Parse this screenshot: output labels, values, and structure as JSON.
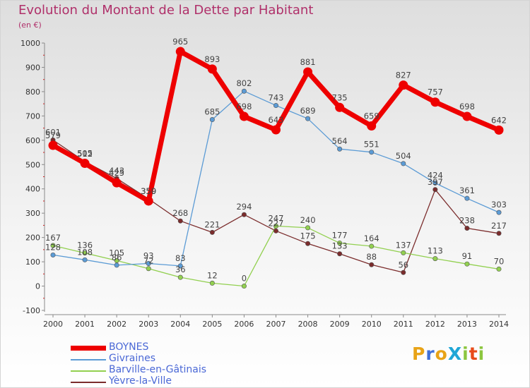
{
  "title": "Evolution du Montant de la Dette par Habitant",
  "subtitle": "(en €)",
  "logo": {
    "text": "ProXiti",
    "letters": [
      {
        "char": "P",
        "color": "#e8a317"
      },
      {
        "char": "r",
        "color": "#3f6fd8"
      },
      {
        "char": "o",
        "color": "#e8a317"
      },
      {
        "char": "X",
        "color": "#1fa6d6"
      },
      {
        "char": "i",
        "color": "#8cc63f"
      },
      {
        "char": "t",
        "color": "#e84b1a"
      },
      {
        "char": "i",
        "color": "#8cc63f"
      }
    ]
  },
  "chart_data": {
    "type": "line",
    "title": "Evolution du Montant de la Dette par Habitant",
    "ylabel": "(en €)",
    "xlabel": "",
    "x": [
      2000,
      2001,
      2002,
      2003,
      2004,
      2005,
      2006,
      2007,
      2008,
      2009,
      2010,
      2011,
      2012,
      2013,
      2014
    ],
    "ylim": [
      -100,
      1000
    ],
    "yticks": [
      -100,
      0,
      100,
      200,
      300,
      400,
      500,
      600,
      700,
      800,
      900,
      1000
    ],
    "grid": false,
    "legend": "bottom-left",
    "series": [
      {
        "name": "BOYNES",
        "color": "#ee0000",
        "values": [
          579,
          505,
          425,
          350,
          965,
          893,
          698,
          643,
          881,
          735,
          659,
          827,
          757,
          698,
          642
        ]
      },
      {
        "name": "Givraines",
        "color": "#5b9bd5",
        "values": [
          128,
          108,
          86,
          93,
          83,
          685,
          802,
          743,
          689,
          564,
          551,
          504,
          424,
          361,
          303
        ]
      },
      {
        "name": "Barville-en-Gâtinais",
        "color": "#92d050",
        "values": [
          167,
          136,
          105,
          72,
          36,
          12,
          0,
          247,
          240,
          177,
          164,
          137,
          113,
          91,
          70
        ]
      },
      {
        "name": "Yèvre-la-Ville",
        "color": "#7b2c2c",
        "values": [
          601,
          512,
          443,
          359,
          268,
          221,
          294,
          227,
          175,
          133,
          88,
          56,
          397,
          238,
          217
        ]
      }
    ]
  }
}
